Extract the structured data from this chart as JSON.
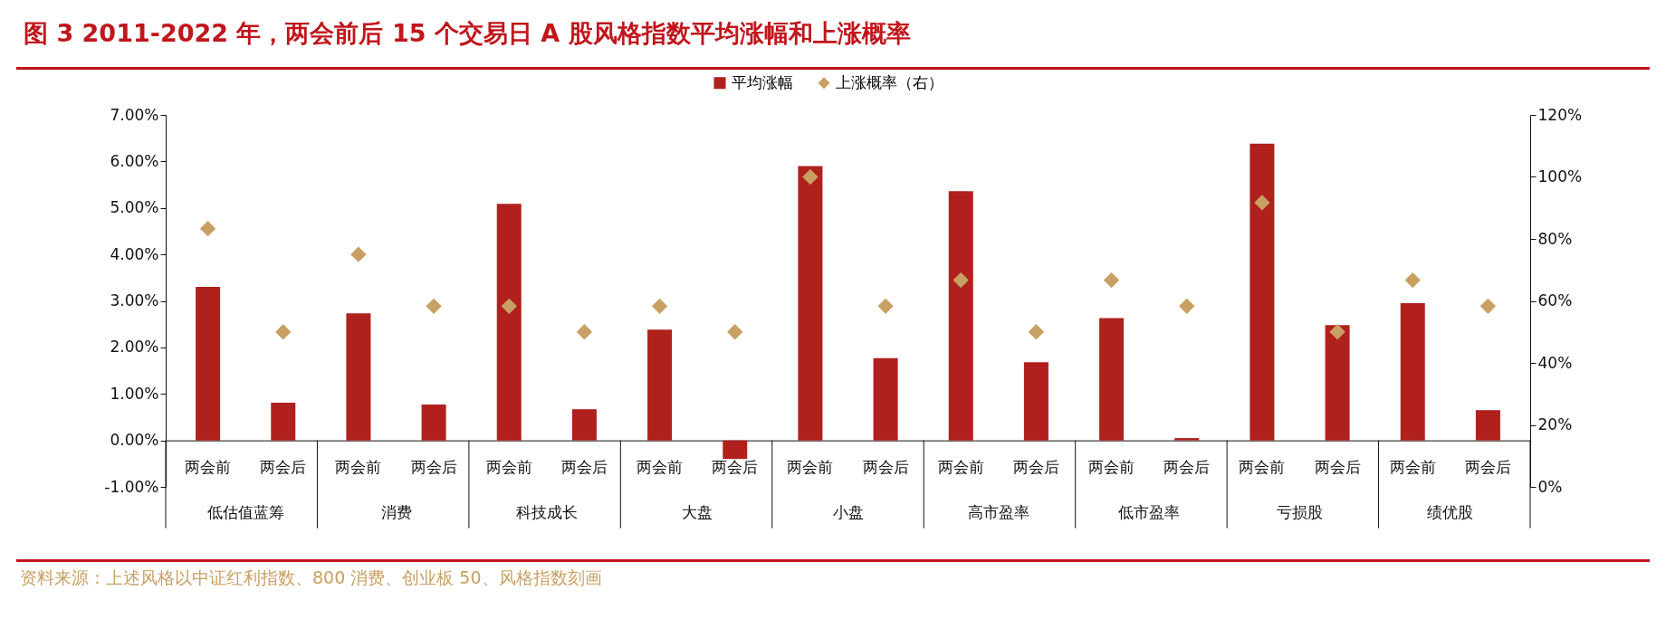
{
  "chart_data": {
    "type": "bar",
    "title": "图 3 2011-2022 年，两会前后 15 个交易日 A 股风格指数平均涨幅和上涨概率",
    "categories": [
      "两会前",
      "两会后",
      "两会前",
      "两会后",
      "两会前",
      "两会后",
      "两会前",
      "两会后",
      "两会前",
      "两会后",
      "两会前",
      "两会后",
      "两会前",
      "两会后",
      "两会前",
      "两会后",
      "两会前",
      "两会后"
    ],
    "series": [
      {
        "name": "平均涨幅",
        "color": "#b0201c",
        "values": [
          3.3,
          0.81,
          2.73,
          0.77,
          5.09,
          0.67,
          2.38,
          -0.4,
          5.9,
          1.77,
          5.36,
          1.68,
          2.63,
          0.05,
          6.38,
          2.48,
          2.95,
          0.65
        ]
      },
      {
        "name": "上涨概率（右）",
        "type": "scatter",
        "axis": "y2",
        "color": "#c9a063",
        "values": [
          83.3,
          50,
          75,
          58.3,
          58.3,
          50,
          58.3,
          50,
          100,
          58.3,
          66.7,
          50,
          66.7,
          58.3,
          91.7,
          50,
          66.7,
          58.3
        ]
      }
    ],
    "marker": "diamond",
    "legend": "top",
    "ylim": [
      -1,
      7
    ],
    "yticks": [
      {
        "value": -1,
        "label": "-1.00%"
      },
      {
        "value": 0,
        "label": "0.00%"
      },
      {
        "value": 1,
        "label": "1.00%"
      },
      {
        "value": 2,
        "label": "2.00%"
      },
      {
        "value": 3,
        "label": "3.00%"
      },
      {
        "value": 4,
        "label": "4.00%"
      },
      {
        "value": 5,
        "label": "5.00%"
      },
      {
        "value": 6,
        "label": "6.00%"
      },
      {
        "value": 7,
        "label": "7.00%"
      }
    ],
    "y2lim": [
      0,
      120
    ],
    "y2ticks": [
      {
        "value": 0,
        "label": "0%"
      },
      {
        "value": 20,
        "label": "20%"
      },
      {
        "value": 40,
        "label": "40%"
      },
      {
        "value": 60,
        "label": "60%"
      },
      {
        "value": 80,
        "label": "80%"
      },
      {
        "value": 100,
        "label": "100%"
      },
      {
        "value": 120,
        "label": "120%"
      }
    ],
    "annotations": [
      "低估值蓝筹",
      "消费",
      "科技成长",
      "大盘",
      "小盘",
      "高市盈率",
      "低市盈率",
      "亏损股",
      "绩优股",
      "资料来源：上述风格以中证红利指数、800 消费、创业板 50、风格指数刻画"
    ]
  }
}
